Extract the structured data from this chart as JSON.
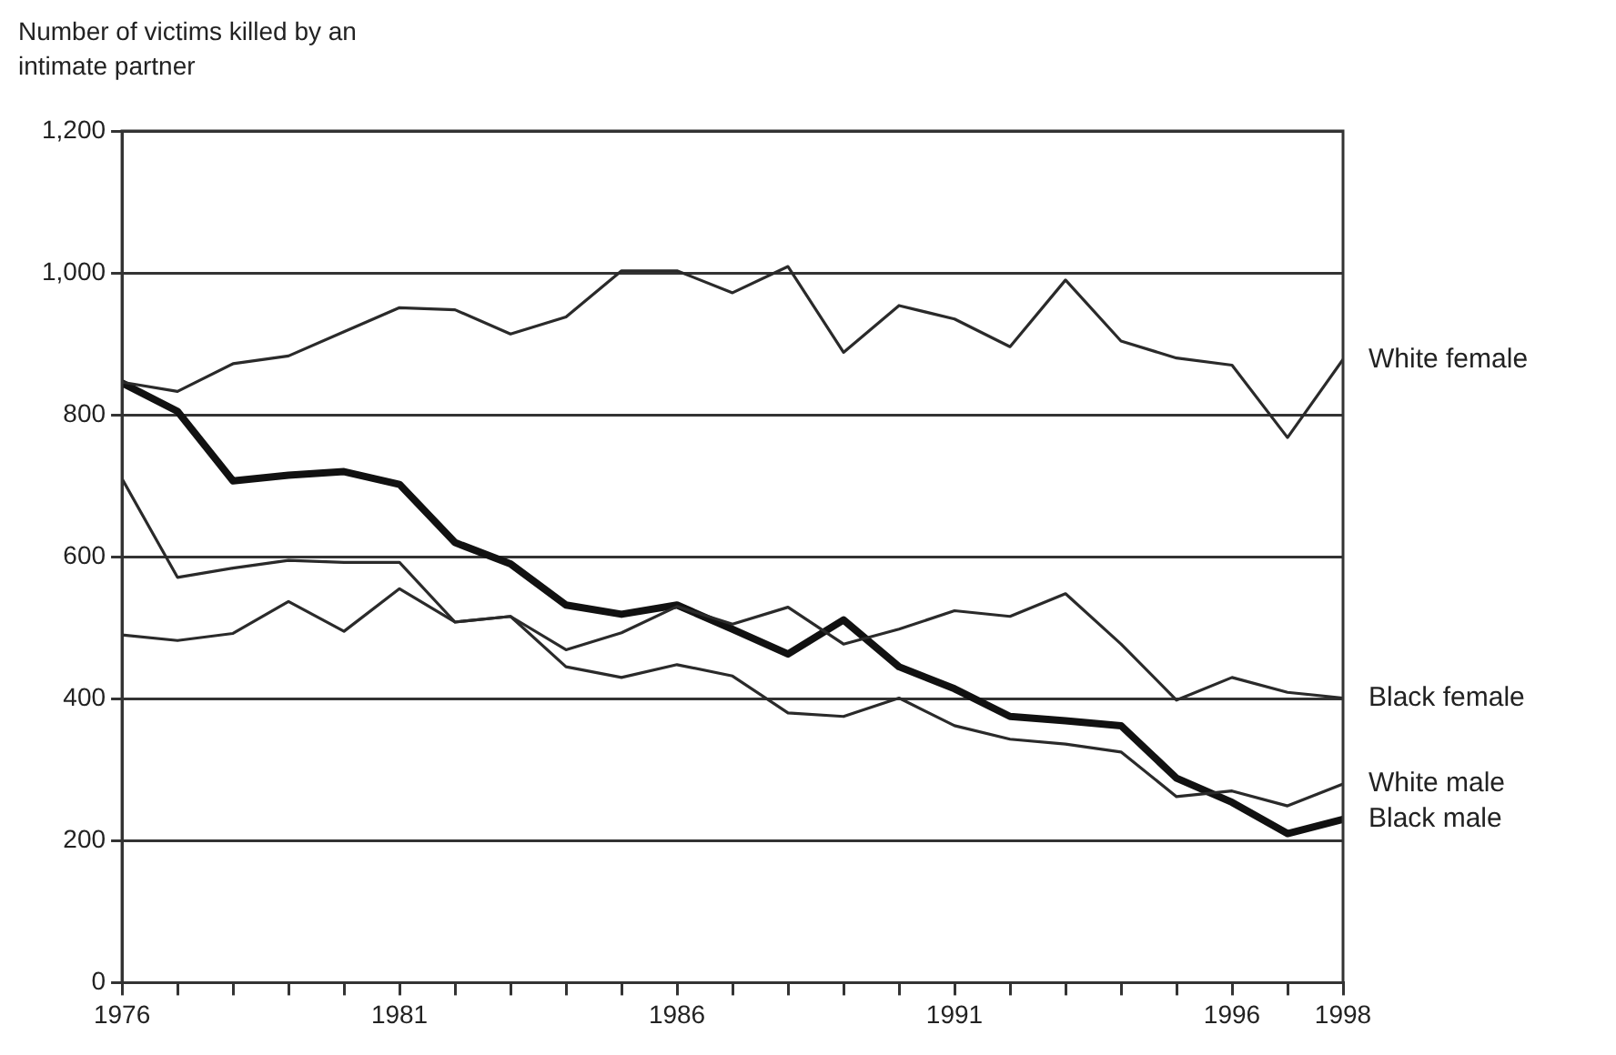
{
  "chart_data": {
    "type": "line",
    "ylabel": "Number of victims killed by an intimate partner",
    "x": [
      1976,
      1977,
      1978,
      1979,
      1980,
      1981,
      1982,
      1983,
      1984,
      1985,
      1986,
      1987,
      1988,
      1989,
      1990,
      1991,
      1992,
      1993,
      1994,
      1995,
      1996,
      1997,
      1998
    ],
    "series": [
      {
        "name": "White female",
        "color": "#2a2a2a",
        "values": [
          846,
          833,
          872,
          883,
          917,
          951,
          948,
          914,
          938,
          1003,
          1003,
          972,
          1009,
          888,
          954,
          935,
          896,
          990,
          904,
          880,
          870,
          768,
          878
        ]
      },
      {
        "name": "Black female",
        "color": "#2a2a2a",
        "values": [
          710,
          571,
          584,
          595,
          592,
          592,
          508,
          516,
          469,
          493,
          530,
          505,
          529,
          477,
          498,
          524,
          516,
          548,
          477,
          398,
          430,
          409,
          401
        ]
      },
      {
        "name": "White male",
        "color": "#2a2a2a",
        "values": [
          490,
          482,
          492,
          537,
          495,
          555,
          508,
          516,
          445,
          430,
          448,
          432,
          380,
          375,
          401,
          362,
          343,
          336,
          325,
          262,
          270,
          249,
          280
        ]
      },
      {
        "name": "Black male",
        "color": "#111111",
        "values": [
          845,
          805,
          707,
          715,
          720,
          702,
          620,
          590,
          532,
          519,
          532,
          498,
          463,
          511,
          445,
          414,
          375,
          369,
          362,
          288,
          254,
          210,
          230
        ]
      }
    ],
    "xlim": [
      1976,
      1998
    ],
    "xticks": [
      1976,
      {
        "value": 1977,
        "label": null
      },
      {
        "value": 1978,
        "label": null
      },
      {
        "value": 1979,
        "label": null
      },
      {
        "value": 1980,
        "label": null
      },
      1981,
      {
        "value": 1982,
        "label": null
      },
      {
        "value": 1983,
        "label": null
      },
      {
        "value": 1984,
        "label": null
      },
      {
        "value": 1985,
        "label": null
      },
      1986,
      {
        "value": 1987,
        "label": null
      },
      {
        "value": 1988,
        "label": null
      },
      {
        "value": 1989,
        "label": null
      },
      {
        "value": 1990,
        "label": null
      },
      1991,
      {
        "value": 1992,
        "label": null
      },
      {
        "value": 1993,
        "label": null
      },
      {
        "value": 1994,
        "label": null
      },
      {
        "value": 1995,
        "label": null
      },
      1996,
      {
        "value": 1997,
        "label": null
      },
      1998
    ],
    "ylim": [
      0,
      1200
    ],
    "yticks": [
      0,
      200,
      400,
      600,
      800,
      {
        "value": 1000,
        "label": "1,000"
      },
      {
        "value": 1200,
        "label": "1,200"
      }
    ],
    "grid": "y",
    "legend": false,
    "marker": "none",
    "line_style": "solid"
  }
}
